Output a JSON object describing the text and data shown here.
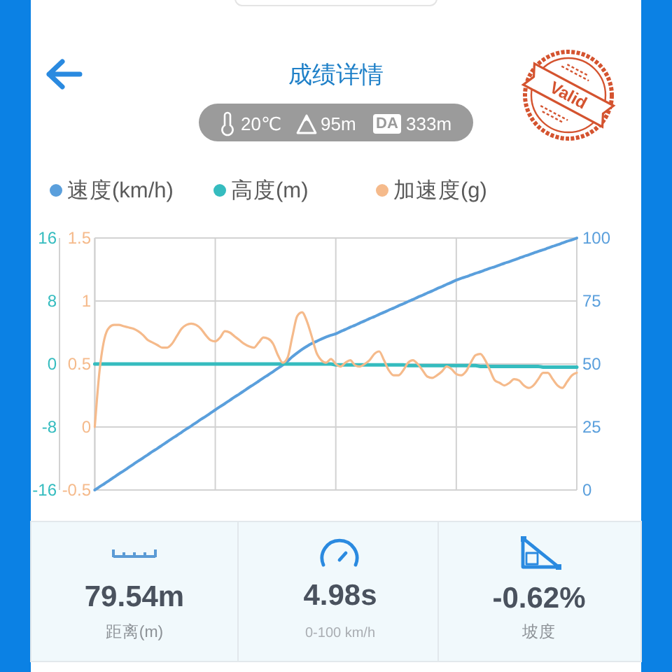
{
  "chart_data": {
    "type": "line",
    "title": "成绩详情",
    "categories": [
      null,
      null,
      null,
      null,
      null,
      null,
      null,
      null,
      null,
      null,
      null,
      null,
      null,
      null,
      null,
      null,
      null,
      null,
      null,
      null,
      null,
      null,
      null,
      null,
      null,
      null,
      null,
      null,
      null,
      null,
      null,
      null,
      null,
      null,
      null,
      null,
      null,
      null,
      null,
      null,
      null,
      null,
      null,
      null,
      null,
      null,
      null,
      null,
      null,
      null,
      null,
      null,
      null,
      null,
      null,
      null,
      null,
      null,
      null,
      null,
      null,
      null,
      null,
      null,
      null,
      null,
      null,
      null,
      null,
      null,
      null,
      null,
      null,
      null,
      null,
      null,
      null,
      null,
      null,
      null,
      null,
      null,
      null,
      null,
      null,
      null,
      null,
      null,
      null,
      null,
      null,
      null,
      null,
      null,
      null,
      null,
      null,
      null,
      null,
      null,
      null
    ],
    "series": [
      {
        "name": "速度(km/h)",
        "color": "#5a9fdc",
        "axis": "y2",
        "values": [
          0,
          1.3,
          2.5,
          3.8,
          5.1,
          6.4,
          7.6,
          8.9,
          10.2,
          11.5,
          12.7,
          14,
          15.3,
          16.5,
          17.8,
          19.1,
          20.4,
          21.6,
          22.9,
          24.2,
          25.4,
          26.7,
          28,
          29.2,
          30.5,
          31.8,
          33.1,
          34.3,
          35.6,
          36.9,
          38.1,
          39.4,
          40.7,
          41.9,
          43.2,
          44.5,
          45.7,
          47,
          48.3,
          49.6,
          51.2,
          52.9,
          54.4,
          55.8,
          57,
          58.1,
          59,
          59.9,
          60.7,
          61.4,
          62,
          62.9,
          63.7,
          64.6,
          65.4,
          66.3,
          67.1,
          68,
          68.8,
          69.7,
          70.5,
          71.4,
          72.2,
          73.1,
          73.9,
          74.8,
          75.6,
          76.5,
          77.3,
          78.2,
          79,
          79.9,
          80.7,
          81.6,
          82.4,
          83.3,
          84,
          84.6,
          85.3,
          86,
          86.6,
          87.3,
          88,
          88.6,
          89.3,
          90,
          90.6,
          91.3,
          92,
          92.7,
          93.3,
          94,
          94.7,
          95.3,
          96,
          96.7,
          97.3,
          98,
          98.7,
          99.3,
          100
        ]
      },
      {
        "name": "高度(m)",
        "color": "#35bcbf",
        "axis": "y",
        "values": [
          0,
          0,
          0,
          0,
          0,
          0,
          0,
          0,
          0,
          0,
          0,
          0,
          0,
          0,
          0,
          0,
          0,
          0,
          0,
          0,
          0,
          0,
          0,
          0,
          0,
          0,
          0,
          0,
          0,
          0,
          0,
          0,
          0,
          0,
          0,
          0,
          0,
          0,
          0,
          0,
          0,
          0,
          0,
          0,
          0,
          0,
          0,
          0,
          0,
          0,
          -0.1,
          -0.1,
          -0.1,
          -0.1,
          -0.1,
          -0.1,
          -0.1,
          -0.1,
          -0.1,
          -0.1,
          -0.1,
          -0.1,
          -0.1,
          -0.1,
          -0.1,
          -0.2,
          -0.2,
          -0.2,
          -0.2,
          -0.2,
          -0.2,
          -0.2,
          -0.2,
          -0.2,
          -0.2,
          -0.2,
          -0.2,
          -0.2,
          -0.2,
          -0.2,
          -0.3,
          -0.3,
          -0.3,
          -0.3,
          -0.3,
          -0.3,
          -0.3,
          -0.3,
          -0.3,
          -0.3,
          -0.3,
          -0.3,
          -0.3,
          -0.4,
          -0.4,
          -0.4,
          -0.4,
          -0.4,
          -0.4,
          -0.4,
          -0.4
        ]
      },
      {
        "name": "加速度(g)",
        "color": "#f5ba8b",
        "axis": "y3",
        "values": [
          0,
          0.45,
          0.7,
          0.79,
          0.81,
          0.81,
          0.8,
          0.79,
          0.78,
          0.76,
          0.73,
          0.69,
          0.67,
          0.65,
          0.63,
          0.63,
          0.66,
          0.72,
          0.78,
          0.81,
          0.82,
          0.81,
          0.78,
          0.73,
          0.69,
          0.68,
          0.71,
          0.76,
          0.75,
          0.72,
          0.69,
          0.66,
          0.64,
          0.63,
          0.67,
          0.71,
          0.7,
          0.66,
          0.57,
          0.51,
          0.55,
          0.72,
          0.88,
          0.91,
          0.84,
          0.72,
          0.59,
          0.53,
          0.51,
          0.54,
          0.5,
          0.48,
          0.51,
          0.53,
          0.49,
          0.48,
          0.5,
          0.53,
          0.58,
          0.6,
          0.53,
          0.45,
          0.41,
          0.41,
          0.45,
          0.51,
          0.53,
          0.5,
          0.45,
          0.4,
          0.39,
          0.41,
          0.44,
          0.48,
          0.46,
          0.42,
          0.41,
          0.44,
          0.51,
          0.57,
          0.58,
          0.53,
          0.45,
          0.37,
          0.35,
          0.33,
          0.35,
          0.38,
          0.37,
          0.33,
          0.31,
          0.33,
          0.38,
          0.43,
          0.43,
          0.38,
          0.33,
          0.31,
          0.36,
          0.41,
          0.43
        ]
      }
    ],
    "ylim": [
      -16,
      16
    ],
    "yticks": [
      -16,
      -8,
      0,
      8,
      16
    ],
    "y2lim": [
      0,
      100
    ],
    "y2ticks": [
      0,
      25,
      50,
      75,
      100
    ],
    "y3lim": [
      -0.5,
      1.5
    ],
    "y3ticks": [
      -0.5,
      0,
      0.5,
      1,
      1.5
    ],
    "grid": true,
    "legend": "top",
    "annotations": [
      "20℃",
      "95m",
      "DA",
      "333m",
      "Valid",
      "79.54m",
      "距离(m)",
      "4.98s",
      "0-100 km/h",
      "-0.62%",
      "坡度"
    ]
  }
}
